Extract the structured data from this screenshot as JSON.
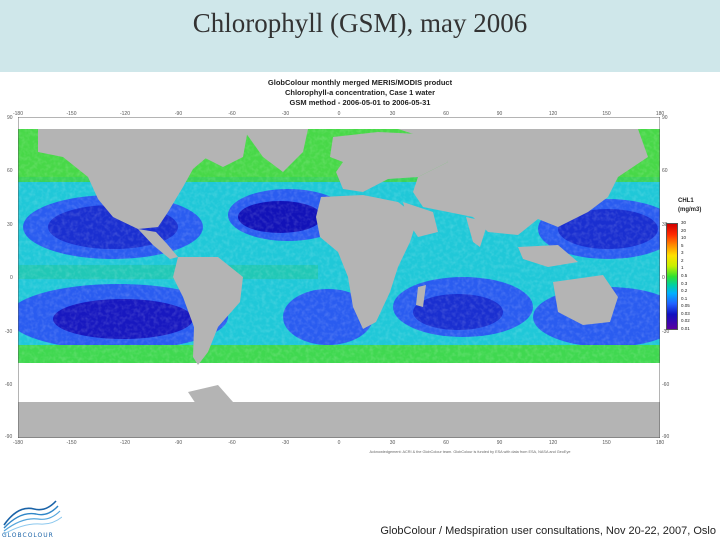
{
  "slide": {
    "title": "Chlorophyll (GSM), may 2006",
    "footer": "GlobColour / Medspiration user consultations, Nov 20-22, 2007, Oslo"
  },
  "product": {
    "line1": "GlobColour monthly merged MERIS/MODIS product",
    "line2": "Chlorophyll-a concentration, Case 1 water",
    "line3": "GSM method - 2006-05-01 to 2006-05-31"
  },
  "axes": {
    "lon_ticks": [
      "-180",
      "-150",
      "-120",
      "-90",
      "-60",
      "-30",
      "0",
      "30",
      "60",
      "90",
      "120",
      "150",
      "180"
    ],
    "lat_ticks": [
      "90",
      "60",
      "30",
      "0",
      "-30",
      "-60",
      "-90"
    ]
  },
  "legend": {
    "title_line1": "CHL1",
    "title_line2": "(mg/m3)",
    "labels": [
      "30",
      "20",
      "10",
      "5",
      "3",
      "2",
      "1",
      "0.5",
      "0.3",
      "0.2",
      "0.1",
      "0.05",
      "0.03",
      "0.02",
      "0.01"
    ],
    "colors": {
      "high": "#d00000",
      "mid_high": "#ffe000",
      "mid": "#30e030",
      "mid_low": "#00b0ff",
      "low": "#1010c0",
      "lowest": "#5a00a0",
      "land": "#b4b4b4",
      "no_data": "#ffffff"
    }
  },
  "acknowledgement": "Acknowledgement: ACRI & the GlobColour team. GlobColour is funded by ESA with data from ESA, NASA and GeoEye",
  "logo": {
    "text": "GLOBCOLOUR",
    "icon": "globcolour-logo-icon"
  }
}
